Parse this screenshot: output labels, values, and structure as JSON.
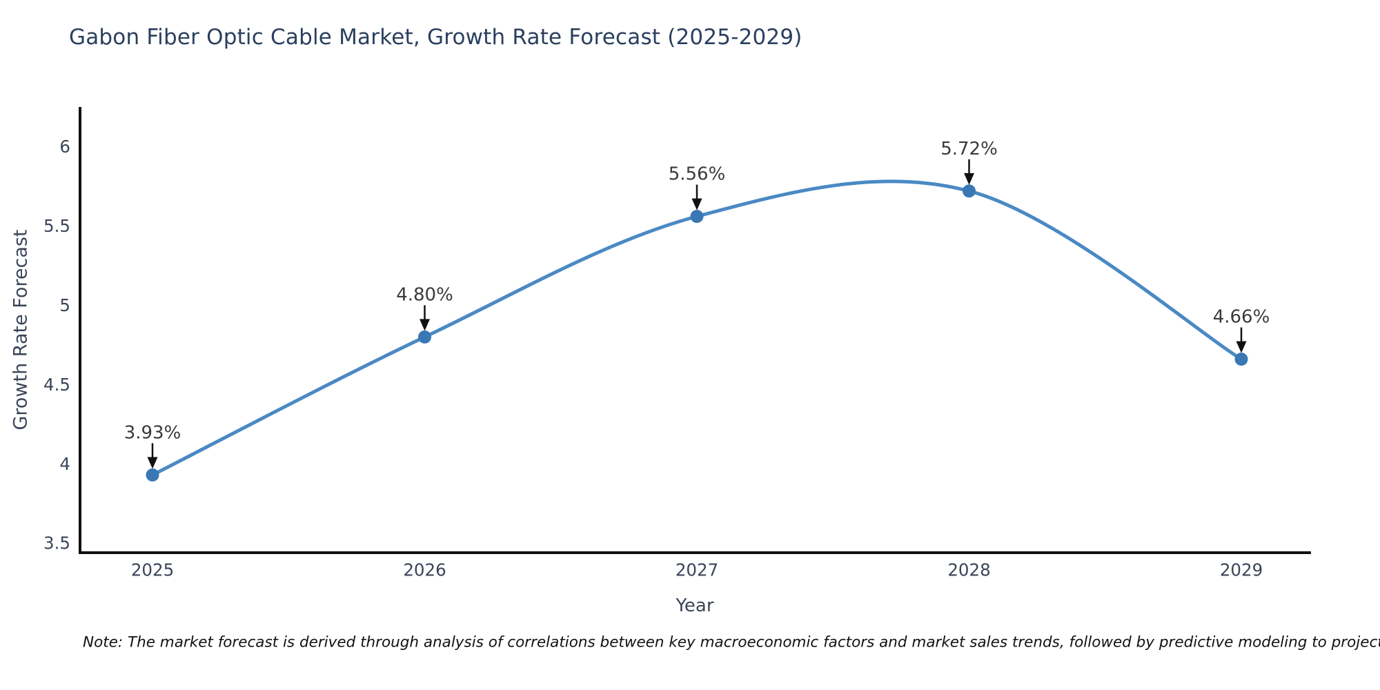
{
  "title": "Gabon Fiber Optic Cable Market, Growth Rate Forecast (2025-2029)",
  "note": "Note: The market forecast is derived through analysis of correlations between key macroeconomic factors and market sales trends, followed by predictive modeling to project future sales",
  "colors": {
    "background": "#ffffff",
    "title_text": "#2a3f5f",
    "axis_line": "#111111",
    "tick_label": "#3b4559",
    "axis_title_text": "#3b4559",
    "line": "#4a89c4",
    "marker": "#3a77b5",
    "annotation_text": "#3a3a3a",
    "arrow": "#111111",
    "note_text": "#111111"
  },
  "chart_data": {
    "type": "line",
    "title": "Gabon Fiber Optic Cable Market, Growth Rate Forecast (2025-2029)",
    "xlabel": "Year",
    "ylabel": "Growth Rate Forecast",
    "x": [
      2025,
      2026,
      2027,
      2028,
      2029
    ],
    "x_tick_labels": [
      "2025",
      "2026",
      "2027",
      "2028",
      "2029"
    ],
    "series": [
      {
        "name": "Growth Rate Forecast",
        "values": [
          3.93,
          4.8,
          5.56,
          5.72,
          4.66
        ],
        "point_labels": [
          "3.93%",
          "4.80%",
          "5.56%",
          "5.72%",
          "4.66%"
        ]
      }
    ],
    "y_ticks": [
      3.5,
      4,
      4.5,
      5,
      5.5,
      6
    ],
    "y_tick_labels": [
      "3.5",
      "4",
      "4.5",
      "5",
      "5.5",
      "6"
    ],
    "ylim": [
      3.44,
      6.25
    ],
    "line_shape": "spline",
    "markers": true,
    "grid": false,
    "legend_visible": false,
    "annotations": "value labels with down arrows above each point"
  }
}
